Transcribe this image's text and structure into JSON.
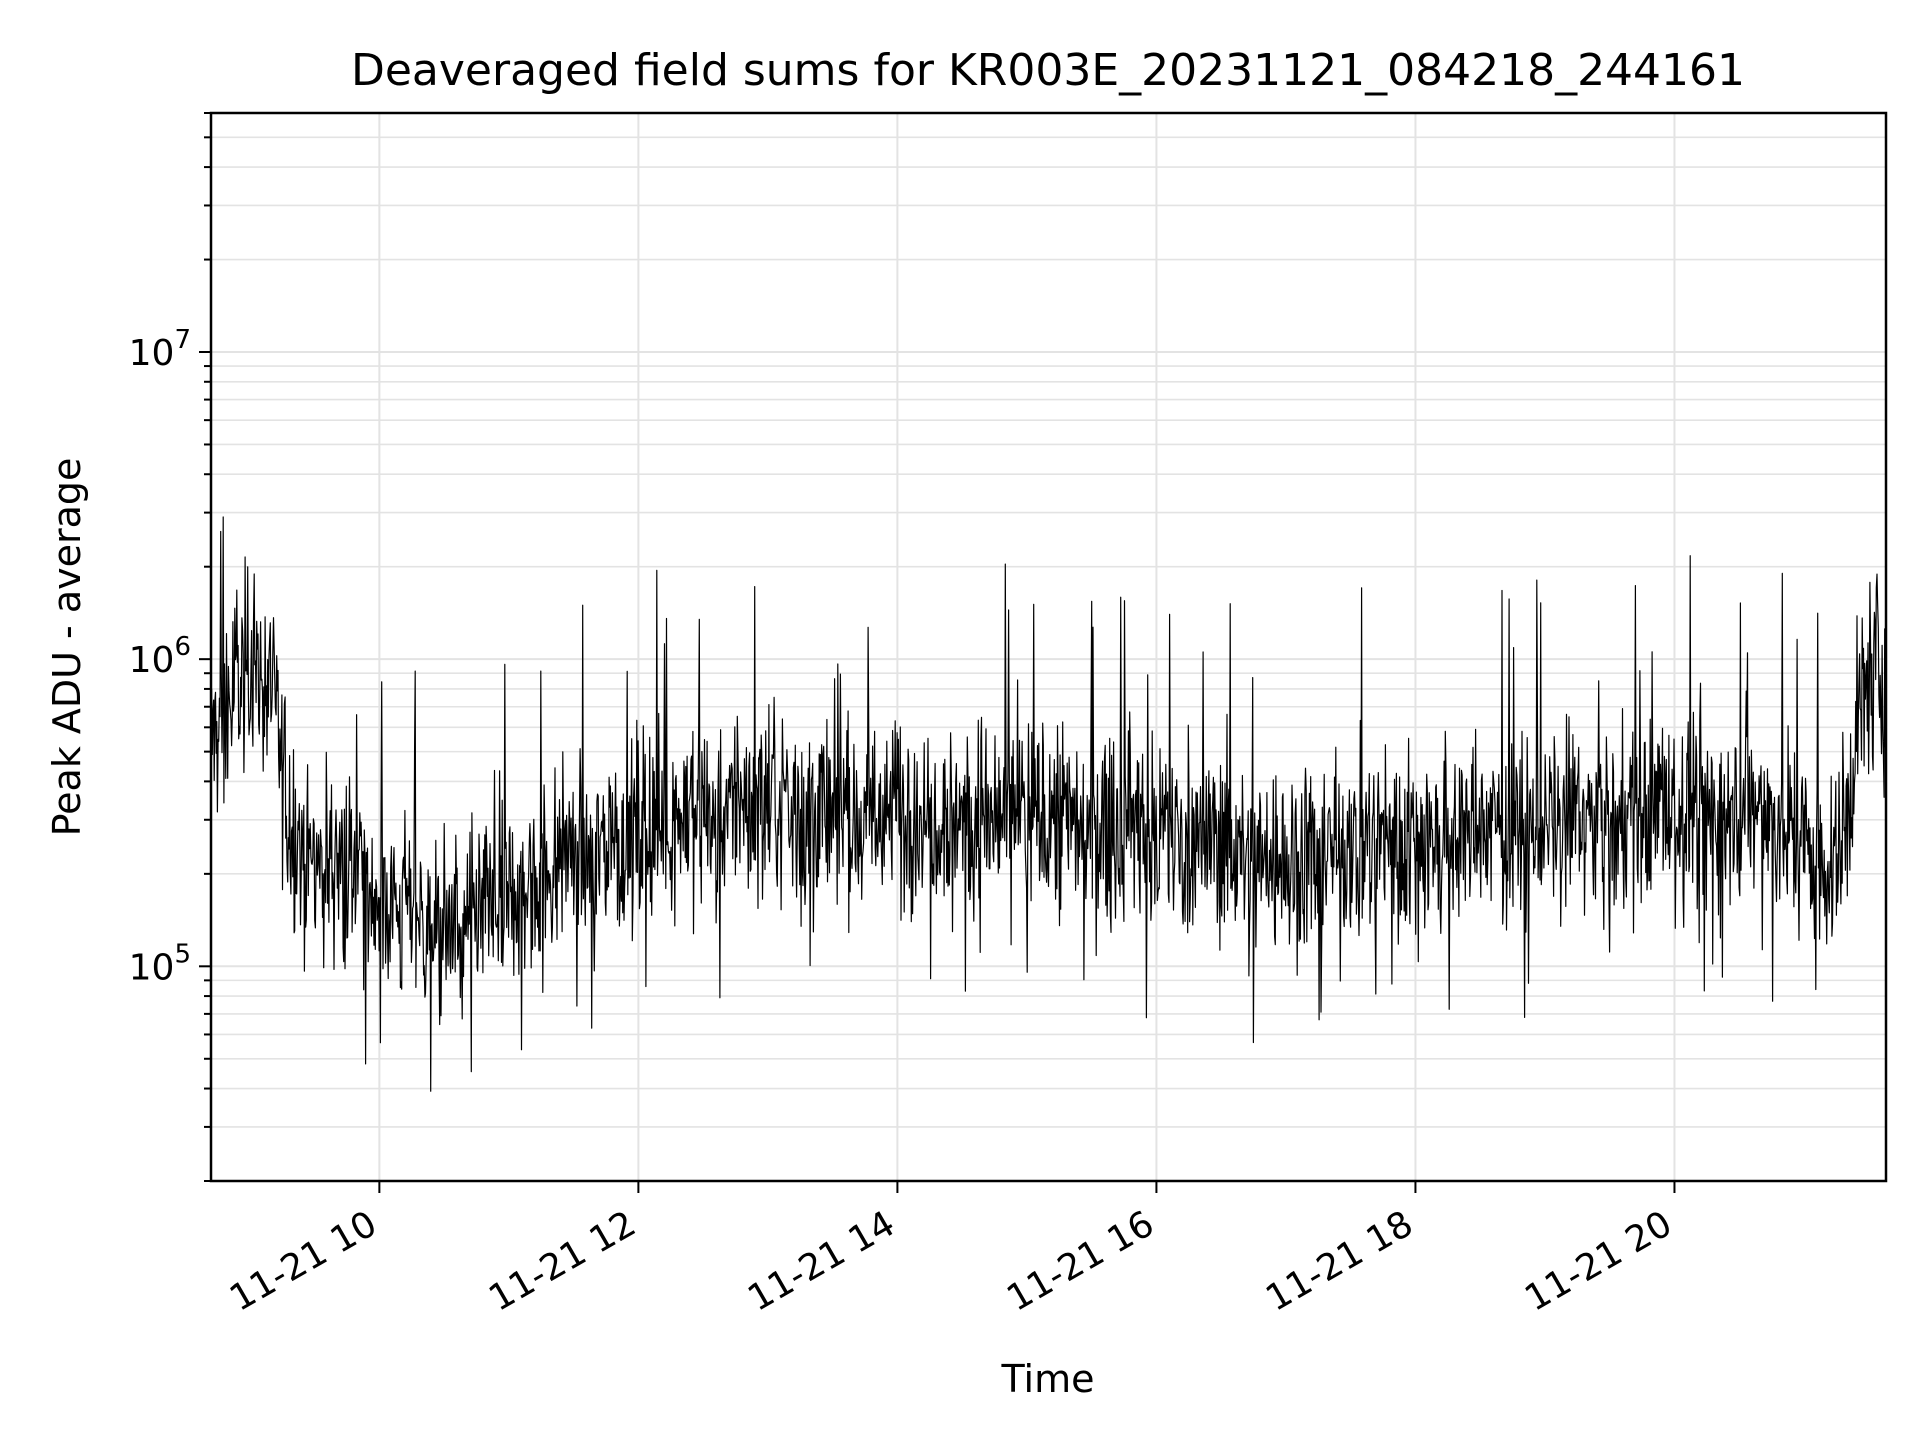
{
  "chart_data": {
    "type": "line",
    "title": "Deaveraged field sums for KR003E_20231121_084218_244161",
    "xlabel": "Time",
    "ylabel": "Peak ADU - average",
    "x_scale": "time",
    "y_scale": "log",
    "xlim": [
      "2023-11-21 08:42",
      "2023-11-21 21:38"
    ],
    "ylim": [
      20000,
      60000000
    ],
    "grid": "on",
    "x_tick_labels": [
      "11-21 10",
      "11-21 12",
      "11-21 14",
      "11-21 16",
      "11-21 18",
      "11-21 20"
    ],
    "x_tick_values": [
      "2023-11-21 10:00",
      "2023-11-21 12:00",
      "2023-11-21 14:00",
      "2023-11-21 16:00",
      "2023-11-21 18:00",
      "2023-11-21 20:00"
    ],
    "y_tick_values": [
      100000,
      1000000,
      10000000
    ],
    "y_tick_labels": [
      {
        "base": "10",
        "exp": "5"
      },
      {
        "base": "10",
        "exp": "6"
      },
      {
        "base": "10",
        "exp": "7"
      }
    ],
    "series": [
      {
        "line_color": "#000000",
        "x": [
          "08:42",
          "08:48",
          "08:55",
          "09:02",
          "09:07",
          "09:10",
          "09:15",
          "09:20",
          "09:25",
          "09:30",
          "09:35",
          "09:40",
          "09:50",
          "10:00",
          "10:10",
          "10:20",
          "10:30",
          "10:40",
          "10:50",
          "11:00",
          "11:10",
          "11:20",
          "11:30",
          "11:40",
          "11:50",
          "12:00",
          "12:15",
          "12:30",
          "12:45",
          "13:00",
          "13:15",
          "13:30",
          "13:45",
          "14:00",
          "14:15",
          "14:30",
          "14:45",
          "15:00",
          "15:15",
          "15:30",
          "15:45",
          "16:00",
          "16:15",
          "16:30",
          "16:45",
          "17:00",
          "17:15",
          "17:30",
          "17:45",
          "18:00",
          "18:15",
          "18:30",
          "18:45",
          "19:00",
          "19:15",
          "19:30",
          "19:45",
          "20:00",
          "20:15",
          "20:30",
          "20:45",
          "21:00",
          "21:10",
          "21:15",
          "21:20",
          "21:25",
          "21:30",
          "21:38"
        ],
        "y": [
          550000,
          600000,
          900000,
          1000000,
          850000,
          700000,
          450000,
          280000,
          250000,
          220000,
          230000,
          210000,
          200000,
          170000,
          150000,
          140000,
          130000,
          125000,
          140000,
          160000,
          180000,
          200000,
          230000,
          250000,
          260000,
          280000,
          300000,
          320000,
          330000,
          330000,
          320000,
          300000,
          310000,
          330000,
          330000,
          320000,
          310000,
          300000,
          310000,
          290000,
          290000,
          280000,
          270000,
          250000,
          230000,
          220000,
          230000,
          240000,
          250000,
          250000,
          260000,
          270000,
          280000,
          290000,
          300000,
          300000,
          310000,
          320000,
          330000,
          320000,
          300000,
          260000,
          220000,
          200000,
          300000,
          600000,
          900000,
          900000
        ]
      }
    ]
  }
}
